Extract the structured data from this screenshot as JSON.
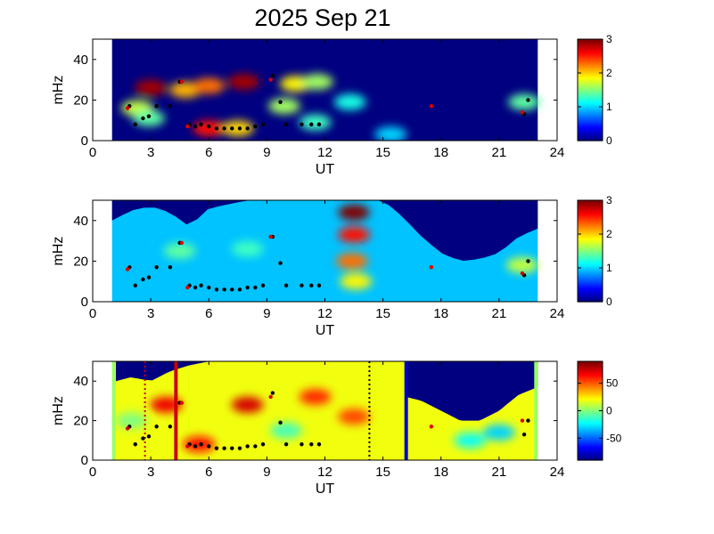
{
  "chart_data": [
    {
      "type": "heatmap",
      "title": "2025 Sep 21",
      "xlabel": "UT",
      "ylabel": "mHz",
      "xlim": [
        0,
        24
      ],
      "ylim": [
        0,
        50
      ],
      "x_ticks": [
        0,
        3,
        6,
        9,
        12,
        15,
        18,
        21,
        24
      ],
      "y_ticks": [
        0,
        20,
        40
      ],
      "data_range_ut": [
        1.0,
        23.0
      ],
      "colorbar": {
        "range": [
          0,
          3
        ],
        "ticks": [
          0,
          1,
          2,
          3
        ],
        "colormap": "jet"
      },
      "background_level": 0.0,
      "features": [
        {
          "ut": 3.0,
          "mhz": 26,
          "value": 2.9
        },
        {
          "ut": 4.8,
          "mhz": 25,
          "value": 2.1
        },
        {
          "ut": 6.0,
          "mhz": 27,
          "value": 2.3
        },
        {
          "ut": 7.8,
          "mhz": 29,
          "value": 2.9
        },
        {
          "ut": 10.5,
          "mhz": 28,
          "value": 1.9
        },
        {
          "ut": 11.6,
          "mhz": 29,
          "value": 1.6
        },
        {
          "ut": 2.3,
          "mhz": 16,
          "value": 1.7
        },
        {
          "ut": 2.9,
          "mhz": 11,
          "value": 1.4
        },
        {
          "ut": 6.0,
          "mhz": 6,
          "value": 2.6
        },
        {
          "ut": 7.5,
          "mhz": 6,
          "value": 2.0
        },
        {
          "ut": 9.9,
          "mhz": 17,
          "value": 1.6
        },
        {
          "ut": 11.5,
          "mhz": 9,
          "value": 1.3
        },
        {
          "ut": 13.3,
          "mhz": 19,
          "value": 1.2
        },
        {
          "ut": 15.4,
          "mhz": 3,
          "value": 1.0
        },
        {
          "ut": 22.3,
          "mhz": 19,
          "value": 1.4
        }
      ],
      "black_points": [
        {
          "ut": 1.9,
          "mhz": 17
        },
        {
          "ut": 2.2,
          "mhz": 8
        },
        {
          "ut": 2.6,
          "mhz": 11
        },
        {
          "ut": 2.9,
          "mhz": 12
        },
        {
          "ut": 3.3,
          "mhz": 17
        },
        {
          "ut": 4.0,
          "mhz": 17
        },
        {
          "ut": 4.5,
          "mhz": 29
        },
        {
          "ut": 5.0,
          "mhz": 8
        },
        {
          "ut": 5.3,
          "mhz": 7
        },
        {
          "ut": 5.6,
          "mhz": 8
        },
        {
          "ut": 6.0,
          "mhz": 7
        },
        {
          "ut": 6.4,
          "mhz": 6
        },
        {
          "ut": 6.8,
          "mhz": 6
        },
        {
          "ut": 7.2,
          "mhz": 6
        },
        {
          "ut": 7.6,
          "mhz": 6
        },
        {
          "ut": 8.0,
          "mhz": 6
        },
        {
          "ut": 8.4,
          "mhz": 7
        },
        {
          "ut": 8.8,
          "mhz": 8
        },
        {
          "ut": 9.3,
          "mhz": 32
        },
        {
          "ut": 9.7,
          "mhz": 19
        },
        {
          "ut": 10.0,
          "mhz": 8
        },
        {
          "ut": 10.8,
          "mhz": 8
        },
        {
          "ut": 11.3,
          "mhz": 8
        },
        {
          "ut": 11.7,
          "mhz": 8
        },
        {
          "ut": 22.3,
          "mhz": 13
        },
        {
          "ut": 22.5,
          "mhz": 20
        }
      ],
      "red_points": [
        {
          "ut": 1.8,
          "mhz": 16
        },
        {
          "ut": 4.6,
          "mhz": 29
        },
        {
          "ut": 4.9,
          "mhz": 7
        },
        {
          "ut": 9.2,
          "mhz": 30
        },
        {
          "ut": 17.5,
          "mhz": 17
        },
        {
          "ut": 22.2,
          "mhz": 14
        }
      ]
    },
    {
      "type": "heatmap",
      "xlabel": "UT",
      "ylabel": "mHz",
      "xlim": [
        0,
        24
      ],
      "ylim": [
        0,
        50
      ],
      "x_ticks": [
        0,
        3,
        6,
        9,
        12,
        15,
        18,
        21,
        24
      ],
      "y_ticks": [
        0,
        20,
        40
      ],
      "data_range_ut": [
        1.0,
        23.0
      ],
      "colorbar": {
        "range": [
          0,
          3
        ],
        "ticks": [
          0,
          1,
          2,
          3
        ],
        "colormap": "jet"
      },
      "background_level": 0.95,
      "noise_region": {
        "ut_start": 1.0,
        "ut_end": 23.0,
        "upper_mhz_profile": [
          [
            1,
            40
          ],
          [
            2,
            45
          ],
          [
            3,
            47
          ],
          [
            4,
            44
          ],
          [
            5,
            37
          ],
          [
            6,
            46
          ],
          [
            8,
            50
          ],
          [
            12,
            50
          ],
          [
            15,
            50
          ],
          [
            16,
            42
          ],
          [
            17,
            32
          ],
          [
            18,
            24
          ],
          [
            19,
            20
          ],
          [
            20,
            21
          ],
          [
            21,
            24
          ],
          [
            22,
            32
          ],
          [
            23,
            36
          ]
        ]
      },
      "features": [
        {
          "ut": 13.5,
          "mhz": 44,
          "value": 3.0
        },
        {
          "ut": 13.5,
          "mhz": 33,
          "value": 2.6
        },
        {
          "ut": 13.4,
          "mhz": 20,
          "value": 2.3
        },
        {
          "ut": 13.6,
          "mhz": 10,
          "value": 1.9
        },
        {
          "ut": 22.2,
          "mhz": 18,
          "value": 1.7
        },
        {
          "ut": 4.5,
          "mhz": 25,
          "value": 1.4
        },
        {
          "ut": 8.0,
          "mhz": 26,
          "value": 1.3
        }
      ],
      "black_points": [
        {
          "ut": 1.9,
          "mhz": 17
        },
        {
          "ut": 2.2,
          "mhz": 8
        },
        {
          "ut": 2.6,
          "mhz": 11
        },
        {
          "ut": 2.9,
          "mhz": 12
        },
        {
          "ut": 3.3,
          "mhz": 17
        },
        {
          "ut": 4.0,
          "mhz": 17
        },
        {
          "ut": 4.5,
          "mhz": 29
        },
        {
          "ut": 5.0,
          "mhz": 8
        },
        {
          "ut": 5.3,
          "mhz": 7
        },
        {
          "ut": 5.6,
          "mhz": 8
        },
        {
          "ut": 6.0,
          "mhz": 7
        },
        {
          "ut": 6.4,
          "mhz": 6
        },
        {
          "ut": 6.8,
          "mhz": 6
        },
        {
          "ut": 7.2,
          "mhz": 6
        },
        {
          "ut": 7.6,
          "mhz": 6
        },
        {
          "ut": 8.0,
          "mhz": 7
        },
        {
          "ut": 8.4,
          "mhz": 7
        },
        {
          "ut": 8.8,
          "mhz": 8
        },
        {
          "ut": 9.3,
          "mhz": 32
        },
        {
          "ut": 9.7,
          "mhz": 19
        },
        {
          "ut": 10.0,
          "mhz": 8
        },
        {
          "ut": 10.8,
          "mhz": 8
        },
        {
          "ut": 11.3,
          "mhz": 8
        },
        {
          "ut": 11.7,
          "mhz": 8
        },
        {
          "ut": 22.3,
          "mhz": 13
        },
        {
          "ut": 22.5,
          "mhz": 20
        }
      ],
      "red_points": [
        {
          "ut": 1.8,
          "mhz": 16
        },
        {
          "ut": 4.6,
          "mhz": 29
        },
        {
          "ut": 4.9,
          "mhz": 7
        },
        {
          "ut": 9.2,
          "mhz": 32
        },
        {
          "ut": 17.5,
          "mhz": 17
        },
        {
          "ut": 22.2,
          "mhz": 14
        }
      ]
    },
    {
      "type": "heatmap",
      "xlabel": "UT",
      "ylabel": "mHz",
      "xlim": [
        0,
        24
      ],
      "ylim": [
        0,
        50
      ],
      "x_ticks": [
        0,
        3,
        6,
        9,
        12,
        15,
        18,
        21,
        24
      ],
      "y_ticks": [
        0,
        20,
        40
      ],
      "data_range_ut": [
        1.0,
        23.0
      ],
      "colorbar": {
        "range": [
          -90,
          90
        ],
        "ticks": [
          -50,
          0,
          50
        ],
        "colormap": "jet"
      },
      "background_level": 20,
      "masked_region": {
        "ut_start": 16.2,
        "ut_end": 23.0,
        "upper_mhz_profile": [
          [
            16.2,
            32
          ],
          [
            17,
            30
          ],
          [
            18,
            25
          ],
          [
            19,
            20
          ],
          [
            20,
            20
          ],
          [
            21,
            25
          ],
          [
            22,
            33
          ],
          [
            23,
            37
          ]
        ]
      },
      "top_mask": {
        "ut_start": 1.2,
        "ut_end": 16.2,
        "upper_mhz_profile": [
          [
            1.2,
            40
          ],
          [
            2,
            42
          ],
          [
            3,
            40
          ],
          [
            4,
            45
          ],
          [
            5,
            48
          ],
          [
            6,
            50
          ],
          [
            16.2,
            50
          ]
        ]
      },
      "features": [
        {
          "ut": 3.8,
          "mhz": 28,
          "value": 70
        },
        {
          "ut": 8.0,
          "mhz": 28,
          "value": 75
        },
        {
          "ut": 11.5,
          "mhz": 32,
          "value": 60
        },
        {
          "ut": 5.5,
          "mhz": 8,
          "value": 65
        },
        {
          "ut": 13.5,
          "mhz": 22,
          "value": 55
        },
        {
          "ut": 10.0,
          "mhz": 15,
          "value": -10
        },
        {
          "ut": 19.5,
          "mhz": 10,
          "value": -20
        },
        {
          "ut": 21.0,
          "mhz": 14,
          "value": -30
        },
        {
          "ut": 2.0,
          "mhz": 20,
          "value": 0
        }
      ],
      "vertical_markers": [
        {
          "ut": 2.7,
          "color": "#cc0000",
          "style": "dotted"
        },
        {
          "ut": 4.3,
          "color": "#cc0000",
          "style": "solid"
        },
        {
          "ut": 14.3,
          "color": "#000000",
          "style": "dotted"
        },
        {
          "ut": 16.2,
          "color": "#0000cc",
          "style": "solid"
        }
      ],
      "edge_color": "#99ff66",
      "black_points": [
        {
          "ut": 1.9,
          "mhz": 17
        },
        {
          "ut": 2.2,
          "mhz": 8
        },
        {
          "ut": 2.6,
          "mhz": 11
        },
        {
          "ut": 2.9,
          "mhz": 12
        },
        {
          "ut": 3.3,
          "mhz": 17
        },
        {
          "ut": 4.0,
          "mhz": 17
        },
        {
          "ut": 4.5,
          "mhz": 29
        },
        {
          "ut": 5.0,
          "mhz": 8
        },
        {
          "ut": 5.3,
          "mhz": 7
        },
        {
          "ut": 5.6,
          "mhz": 8
        },
        {
          "ut": 6.0,
          "mhz": 7
        },
        {
          "ut": 6.4,
          "mhz": 6
        },
        {
          "ut": 6.8,
          "mhz": 6
        },
        {
          "ut": 7.2,
          "mhz": 6
        },
        {
          "ut": 7.6,
          "mhz": 6
        },
        {
          "ut": 8.0,
          "mhz": 7
        },
        {
          "ut": 8.4,
          "mhz": 7
        },
        {
          "ut": 8.8,
          "mhz": 8
        },
        {
          "ut": 9.3,
          "mhz": 34
        },
        {
          "ut": 9.7,
          "mhz": 19
        },
        {
          "ut": 10.0,
          "mhz": 8
        },
        {
          "ut": 10.8,
          "mhz": 8
        },
        {
          "ut": 11.3,
          "mhz": 8
        },
        {
          "ut": 11.7,
          "mhz": 8
        },
        {
          "ut": 22.3,
          "mhz": 13
        },
        {
          "ut": 22.5,
          "mhz": 20
        }
      ],
      "red_points": [
        {
          "ut": 1.8,
          "mhz": 16
        },
        {
          "ut": 4.6,
          "mhz": 29
        },
        {
          "ut": 4.9,
          "mhz": 7
        },
        {
          "ut": 9.2,
          "mhz": 32
        },
        {
          "ut": 17.5,
          "mhz": 17
        },
        {
          "ut": 22.2,
          "mhz": 20
        }
      ]
    }
  ]
}
